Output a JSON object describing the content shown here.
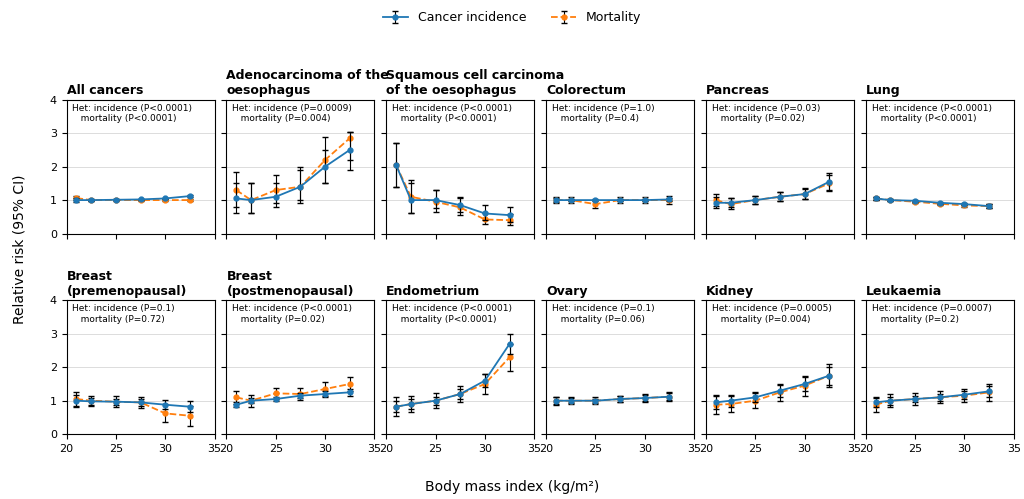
{
  "xlabel": "Body mass index (kg/m²)",
  "ylabel": "Relative risk (95% CI)",
  "legend": "upper center",
  "chart_data": [
    {
      "type": "line",
      "title": "All cancers",
      "annotation": "Het: incidence (P<0.0001)\n   mortality (P<0.0001)",
      "x": [
        21,
        22.5,
        25,
        27.5,
        30,
        32.5
      ],
      "xlim": [
        20,
        35
      ],
      "xticks": [
        20,
        25,
        30,
        35
      ],
      "ylim": [
        0,
        4
      ],
      "yticks": [
        0,
        1,
        2,
        3,
        4
      ],
      "grid": "y",
      "series": [
        {
          "name": "Cancer incidence",
          "marker": "o",
          "line_style": "solid",
          "values": [
            1.0,
            1.0,
            1.01,
            1.02,
            1.05,
            1.12
          ],
          "ci_low": [
            0.95,
            0.97,
            0.99,
            1.0,
            1.03,
            1.09
          ],
          "ci_high": [
            1.05,
            1.03,
            1.03,
            1.04,
            1.07,
            1.15
          ]
        },
        {
          "name": "Mortality",
          "marker": "o",
          "line_style": "dashed",
          "values": [
            1.06,
            1.0,
            1.0,
            1.0,
            1.0,
            1.0
          ],
          "ci_low": [
            1.01,
            0.97,
            0.98,
            0.98,
            0.97,
            0.96
          ],
          "ci_high": [
            1.11,
            1.03,
            1.02,
            1.02,
            1.03,
            1.04
          ]
        }
      ]
    },
    {
      "type": "line",
      "title": "Adenocarcinoma of the\noesophagus",
      "annotation": "Het: incidence (P=0.0009)\n   mortality (P=0.004)",
      "x": [
        21,
        22.5,
        25,
        27.5,
        30,
        32.5
      ],
      "xlim": [
        20,
        35
      ],
      "xticks": [
        20,
        25,
        30,
        35
      ],
      "ylim": [
        0,
        4
      ],
      "yticks": [
        0,
        1,
        2,
        3,
        4
      ],
      "grid": "y",
      "series": [
        {
          "name": "Cancer incidence",
          "marker": "o",
          "line_style": "solid",
          "values": [
            1.05,
            1.0,
            1.1,
            1.4,
            2.0,
            2.5
          ],
          "ci_low": [
            0.6,
            0.6,
            0.8,
            1.0,
            1.5,
            1.9
          ],
          "ci_high": [
            1.5,
            1.5,
            1.5,
            1.9,
            2.5,
            3.05
          ]
        },
        {
          "name": "Mortality",
          "marker": "o",
          "line_style": "dashed",
          "values": [
            1.3,
            1.0,
            1.3,
            1.4,
            2.2,
            2.85
          ],
          "ci_low": [
            0.8,
            0.6,
            0.9,
            0.9,
            1.5,
            2.2
          ],
          "ci_high": [
            1.85,
            1.5,
            1.75,
            2.0,
            2.9,
            3.05
          ]
        }
      ]
    },
    {
      "type": "line",
      "title": "Squamous cell carcinoma\nof the oesophagus",
      "annotation": "Het: incidence (P<0.0001)\n   mortality (P<0.0001)",
      "x": [
        21,
        22.5,
        25,
        27.5,
        30,
        32.5
      ],
      "xlim": [
        20,
        35
      ],
      "xticks": [
        20,
        25,
        30,
        35
      ],
      "ylim": [
        0,
        4
      ],
      "yticks": [
        0,
        1,
        2,
        3,
        4
      ],
      "grid": "y",
      "series": [
        {
          "name": "Cancer incidence",
          "marker": "o",
          "line_style": "solid",
          "values": [
            2.05,
            1.0,
            1.0,
            0.85,
            0.6,
            0.55
          ],
          "ci_low": [
            1.4,
            0.6,
            0.75,
            0.65,
            0.4,
            0.35
          ],
          "ci_high": [
            2.7,
            1.5,
            1.3,
            1.1,
            0.85,
            0.78
          ]
        },
        {
          "name": "Mortality",
          "marker": "o",
          "line_style": "dashed",
          "values": [
            2.05,
            1.1,
            0.95,
            0.78,
            0.42,
            0.4
          ],
          "ci_low": [
            1.4,
            0.6,
            0.65,
            0.55,
            0.28,
            0.25
          ],
          "ci_high": [
            2.7,
            1.6,
            1.3,
            1.05,
            0.6,
            0.58
          ]
        }
      ]
    },
    {
      "type": "line",
      "title": "Colorectum",
      "annotation": "Het: incidence (P=1.0)\n   mortality (P=0.4)",
      "x": [
        21,
        22.5,
        25,
        27.5,
        30,
        32.5
      ],
      "xlim": [
        20,
        35
      ],
      "xticks": [
        20,
        25,
        30,
        35
      ],
      "ylim": [
        0,
        4
      ],
      "yticks": [
        0,
        1,
        2,
        3,
        4
      ],
      "grid": "y",
      "series": [
        {
          "name": "Cancer incidence",
          "marker": "o",
          "line_style": "solid",
          "values": [
            1.0,
            1.0,
            1.0,
            1.0,
            1.0,
            1.02
          ],
          "ci_low": [
            0.93,
            0.96,
            0.97,
            0.97,
            0.96,
            0.97
          ],
          "ci_high": [
            1.07,
            1.04,
            1.03,
            1.03,
            1.04,
            1.07
          ]
        },
        {
          "name": "Mortality",
          "marker": "o",
          "line_style": "dashed",
          "values": [
            1.0,
            1.0,
            0.88,
            1.0,
            1.0,
            1.0
          ],
          "ci_low": [
            0.9,
            0.9,
            0.76,
            0.9,
            0.9,
            0.88
          ],
          "ci_high": [
            1.1,
            1.1,
            1.0,
            1.1,
            1.1,
            1.12
          ]
        }
      ]
    },
    {
      "type": "line",
      "title": "Pancreas",
      "annotation": "Het: incidence (P=0.03)\n   mortality (P=0.02)",
      "x": [
        21,
        22.5,
        25,
        27.5,
        30,
        32.5
      ],
      "xlim": [
        20,
        35
      ],
      "xticks": [
        20,
        25,
        30,
        35
      ],
      "ylim": [
        0,
        4
      ],
      "yticks": [
        0,
        1,
        2,
        3,
        4
      ],
      "grid": "y",
      "series": [
        {
          "name": "Cancer incidence",
          "marker": "o",
          "line_style": "solid",
          "values": [
            0.92,
            0.92,
            1.0,
            1.1,
            1.18,
            1.55
          ],
          "ci_low": [
            0.75,
            0.78,
            0.88,
            0.97,
            1.02,
            1.3
          ],
          "ci_high": [
            1.1,
            1.07,
            1.12,
            1.23,
            1.35,
            1.8
          ]
        },
        {
          "name": "Mortality",
          "marker": "o",
          "line_style": "dashed",
          "values": [
            1.0,
            0.88,
            1.0,
            1.1,
            1.18,
            1.5
          ],
          "ci_low": [
            0.82,
            0.72,
            0.87,
            0.97,
            1.02,
            1.26
          ],
          "ci_high": [
            1.18,
            1.05,
            1.13,
            1.23,
            1.34,
            1.74
          ]
        }
      ]
    },
    {
      "type": "line",
      "title": "Lung",
      "annotation": "Het: incidence (P<0.0001)\n   mortality (P<0.0001)",
      "x": [
        21,
        22.5,
        25,
        27.5,
        30,
        32.5
      ],
      "xlim": [
        20,
        35
      ],
      "xticks": [
        20,
        25,
        30,
        35
      ],
      "ylim": [
        0,
        4
      ],
      "yticks": [
        0,
        1,
        2,
        3,
        4
      ],
      "grid": "y",
      "series": [
        {
          "name": "Cancer incidence",
          "marker": "o",
          "line_style": "solid",
          "values": [
            1.05,
            1.0,
            0.98,
            0.92,
            0.88,
            0.82
          ],
          "ci_low": [
            1.0,
            0.97,
            0.95,
            0.89,
            0.84,
            0.77
          ],
          "ci_high": [
            1.1,
            1.03,
            1.01,
            0.95,
            0.92,
            0.87
          ]
        },
        {
          "name": "Mortality",
          "marker": "o",
          "line_style": "dashed",
          "values": [
            1.05,
            1.0,
            0.95,
            0.89,
            0.84,
            0.82
          ],
          "ci_low": [
            1.0,
            0.96,
            0.92,
            0.86,
            0.8,
            0.77
          ],
          "ci_high": [
            1.1,
            1.04,
            0.98,
            0.92,
            0.88,
            0.87
          ]
        }
      ]
    },
    {
      "type": "line",
      "title": "Breast\n(premenopausal)",
      "annotation": "Het: incidence (P=0.1)\n   mortality (P=0.72)",
      "x": [
        21,
        22.5,
        25,
        27.5,
        30,
        32.5
      ],
      "xlim": [
        20,
        35
      ],
      "xticks": [
        20,
        25,
        30,
        35
      ],
      "ylim": [
        0,
        4
      ],
      "yticks": [
        0,
        1,
        2,
        3,
        4
      ],
      "grid": "y",
      "series": [
        {
          "name": "Cancer incidence",
          "marker": "o",
          "line_style": "solid",
          "values": [
            1.0,
            0.98,
            0.97,
            0.95,
            0.88,
            0.82
          ],
          "ci_low": [
            0.82,
            0.88,
            0.88,
            0.85,
            0.75,
            0.65
          ],
          "ci_high": [
            1.18,
            1.08,
            1.06,
            1.05,
            1.02,
            0.99
          ]
        },
        {
          "name": "Mortality",
          "marker": "o",
          "line_style": "dashed",
          "values": [
            1.05,
            1.0,
            0.97,
            0.95,
            0.62,
            0.55
          ],
          "ci_low": [
            0.85,
            0.85,
            0.8,
            0.78,
            0.35,
            0.25
          ],
          "ci_high": [
            1.25,
            1.15,
            1.14,
            1.12,
            0.9,
            0.85
          ]
        }
      ]
    },
    {
      "type": "line",
      "title": "Breast\n(postmenopausal)",
      "annotation": "Het: incidence (P<0.0001)\n   mortality (P=0.02)",
      "x": [
        21,
        22.5,
        25,
        27.5,
        30,
        32.5
      ],
      "xlim": [
        20,
        35
      ],
      "xticks": [
        20,
        25,
        30,
        35
      ],
      "ylim": [
        0,
        4
      ],
      "yticks": [
        0,
        1,
        2,
        3,
        4
      ],
      "grid": "y",
      "series": [
        {
          "name": "Cancer incidence",
          "marker": "o",
          "line_style": "solid",
          "values": [
            0.88,
            1.0,
            1.05,
            1.15,
            1.2,
            1.25
          ],
          "ci_low": [
            0.8,
            0.93,
            0.98,
            1.07,
            1.11,
            1.15
          ],
          "ci_high": [
            0.96,
            1.07,
            1.12,
            1.23,
            1.29,
            1.35
          ]
        },
        {
          "name": "Mortality",
          "marker": "o",
          "line_style": "dashed",
          "values": [
            1.1,
            1.0,
            1.22,
            1.2,
            1.35,
            1.5
          ],
          "ci_low": [
            0.9,
            0.82,
            1.05,
            1.02,
            1.15,
            1.28
          ],
          "ci_high": [
            1.3,
            1.18,
            1.39,
            1.38,
            1.55,
            1.72
          ]
        }
      ]
    },
    {
      "type": "line",
      "title": "Endometrium",
      "annotation": "Het: incidence (P<0.0001)\n   mortality (P<0.0001)",
      "x": [
        21,
        22.5,
        25,
        27.5,
        30,
        32.5
      ],
      "xlim": [
        20,
        35
      ],
      "xticks": [
        20,
        25,
        30,
        35
      ],
      "ylim": [
        0,
        4
      ],
      "yticks": [
        0,
        1,
        2,
        3,
        4
      ],
      "grid": "y",
      "series": [
        {
          "name": "Cancer incidence",
          "marker": "o",
          "line_style": "solid",
          "values": [
            0.82,
            0.9,
            1.0,
            1.2,
            1.6,
            2.7
          ],
          "ci_low": [
            0.65,
            0.75,
            0.88,
            1.05,
            1.4,
            2.4
          ],
          "ci_high": [
            0.99,
            1.05,
            1.12,
            1.35,
            1.8,
            3.0
          ]
        },
        {
          "name": "Mortality",
          "marker": "o",
          "line_style": "dashed",
          "values": [
            0.82,
            0.9,
            1.0,
            1.2,
            1.5,
            2.3
          ],
          "ci_low": [
            0.55,
            0.65,
            0.78,
            0.95,
            1.2,
            1.9
          ],
          "ci_high": [
            1.1,
            1.15,
            1.22,
            1.45,
            1.8,
            2.7
          ]
        }
      ]
    },
    {
      "type": "line",
      "title": "Ovary",
      "annotation": "Het: incidence (P=0.1)\n   mortality (P=0.06)",
      "x": [
        21,
        22.5,
        25,
        27.5,
        30,
        32.5
      ],
      "xlim": [
        20,
        35
      ],
      "xticks": [
        20,
        25,
        30,
        35
      ],
      "ylim": [
        0,
        4
      ],
      "yticks": [
        0,
        1,
        2,
        3,
        4
      ],
      "grid": "y",
      "series": [
        {
          "name": "Cancer incidence",
          "marker": "o",
          "line_style": "solid",
          "values": [
            1.0,
            1.0,
            1.0,
            1.05,
            1.08,
            1.12
          ],
          "ci_low": [
            0.9,
            0.93,
            0.94,
            0.97,
            0.99,
            1.01
          ],
          "ci_high": [
            1.1,
            1.07,
            1.06,
            1.13,
            1.17,
            1.23
          ]
        },
        {
          "name": "Mortality",
          "marker": "o",
          "line_style": "dashed",
          "values": [
            1.0,
            1.0,
            1.0,
            1.05,
            1.08,
            1.12
          ],
          "ci_low": [
            0.88,
            0.9,
            0.9,
            0.95,
            0.96,
            0.98
          ],
          "ci_high": [
            1.12,
            1.1,
            1.1,
            1.15,
            1.2,
            1.26
          ]
        }
      ]
    },
    {
      "type": "line",
      "title": "Kidney",
      "annotation": "Het: incidence (P=0.0005)\n   mortality (P=0.004)",
      "x": [
        21,
        22.5,
        25,
        27.5,
        30,
        32.5
      ],
      "xlim": [
        20,
        35
      ],
      "xticks": [
        20,
        25,
        30,
        35
      ],
      "ylim": [
        0,
        4
      ],
      "yticks": [
        0,
        1,
        2,
        3,
        4
      ],
      "grid": "y",
      "series": [
        {
          "name": "Cancer incidence",
          "marker": "o",
          "line_style": "solid",
          "values": [
            0.95,
            1.0,
            1.1,
            1.3,
            1.5,
            1.75
          ],
          "ci_low": [
            0.75,
            0.82,
            0.95,
            1.12,
            1.3,
            1.48
          ],
          "ci_high": [
            1.15,
            1.18,
            1.25,
            1.48,
            1.7,
            2.02
          ]
        },
        {
          "name": "Mortality",
          "marker": "o",
          "line_style": "dashed",
          "values": [
            0.88,
            0.9,
            1.0,
            1.25,
            1.45,
            1.75
          ],
          "ci_low": [
            0.6,
            0.65,
            0.78,
            1.0,
            1.15,
            1.4
          ],
          "ci_high": [
            1.16,
            1.15,
            1.22,
            1.5,
            1.75,
            2.1
          ]
        }
      ]
    },
    {
      "type": "line",
      "title": "Leukaemia",
      "annotation": "Het: incidence (P=0.0007)\n   mortality (P=0.2)",
      "x": [
        21,
        22.5,
        25,
        27.5,
        30,
        32.5
      ],
      "xlim": [
        20,
        35
      ],
      "xticks": [
        20,
        25,
        30,
        35
      ],
      "ylim": [
        0,
        4
      ],
      "yticks": [
        0,
        1,
        2,
        3,
        4
      ],
      "grid": "y",
      "series": [
        {
          "name": "Cancer incidence",
          "marker": "o",
          "line_style": "solid",
          "values": [
            0.95,
            1.0,
            1.05,
            1.1,
            1.18,
            1.28
          ],
          "ci_low": [
            0.82,
            0.88,
            0.95,
            0.99,
            1.06,
            1.12
          ],
          "ci_high": [
            1.08,
            1.12,
            1.15,
            1.21,
            1.3,
            1.44
          ]
        },
        {
          "name": "Mortality",
          "marker": "o",
          "line_style": "dashed",
          "values": [
            0.88,
            1.0,
            1.05,
            1.1,
            1.15,
            1.25
          ],
          "ci_low": [
            0.65,
            0.8,
            0.88,
            0.92,
            0.95,
            1.0
          ],
          "ci_high": [
            1.11,
            1.2,
            1.22,
            1.28,
            1.35,
            1.5
          ]
        }
      ]
    }
  ]
}
